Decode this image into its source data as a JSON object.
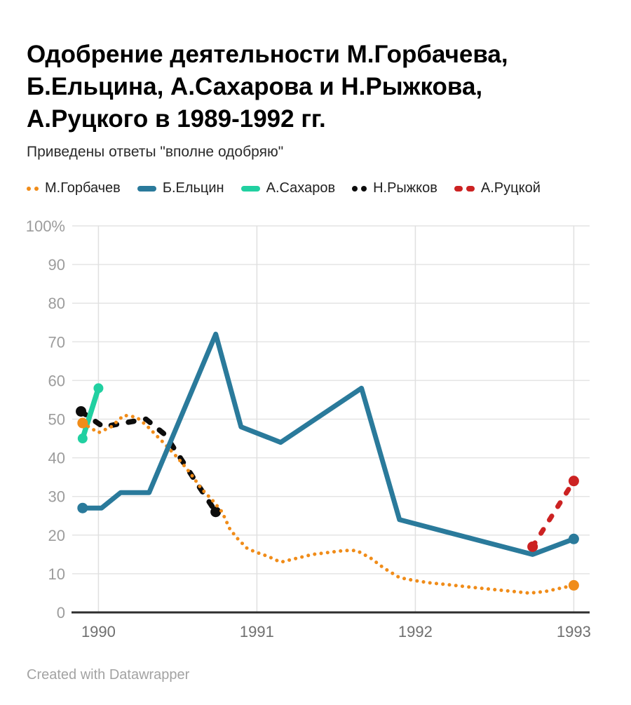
{
  "header": {
    "title_lines": [
      "Одобрение деятельности М.Горбачева,",
      "Б.Ельцина, А.Сахарова и Н.Рыжкова,",
      "А.Руцкого в 1989-1992 гг."
    ],
    "subtitle": "Приведены ответы \"вполне одобряю\""
  },
  "legend": {
    "items": [
      {
        "label": "М.Горбачев",
        "color": "#f08c19",
        "swatch": "dots-small"
      },
      {
        "label": "Б.Ельцин",
        "color": "#2a7a9b",
        "swatch": "bar"
      },
      {
        "label": "А.Сахаров",
        "color": "#21d0a1",
        "swatch": "bar"
      },
      {
        "label": "Н.Рыжков",
        "color": "#0c0c0c",
        "swatch": "dots"
      },
      {
        "label": "А.Руцкой",
        "color": "#cc2222",
        "swatch": "dashes"
      }
    ]
  },
  "chart_data": {
    "type": "line",
    "title": "Одобрение деятельности М.Горбачева, Б.Ельцина, А.Сахарова и Н.Рыжкова, А.Руцкого в 1989-1992 гг.",
    "subtitle": "Приведены ответы \"вполне одобряю\"",
    "xlabel": "",
    "ylabel": "%",
    "xlim": [
      1989.83,
      1993.1
    ],
    "ylim": [
      0,
      100
    ],
    "grid": true,
    "legend_position": "top",
    "x_ticks": [
      1990,
      1991,
      1992,
      1993
    ],
    "y_ticks": [
      {
        "v": 0,
        "label": "0"
      },
      {
        "v": 10,
        "label": "10"
      },
      {
        "v": 20,
        "label": "20"
      },
      {
        "v": 30,
        "label": "30"
      },
      {
        "v": 40,
        "label": "40"
      },
      {
        "v": 50,
        "label": "50"
      },
      {
        "v": 60,
        "label": "60"
      },
      {
        "v": 70,
        "label": "70"
      },
      {
        "v": 80,
        "label": "80"
      },
      {
        "v": 90,
        "label": "90"
      },
      {
        "v": 100,
        "label": "100%"
      }
    ],
    "series": [
      {
        "id": "ryzhkov",
        "name": "Н.Рыжков",
        "color": "#0c0c0c",
        "style": "dashed",
        "dash": "8 17",
        "width": 7.5,
        "marker_r": 7.5,
        "points": [
          [
            1989.89,
            52
          ],
          [
            1990.03,
            48
          ],
          [
            1990.16,
            49
          ],
          [
            1990.3,
            50
          ],
          [
            1990.42,
            46
          ],
          [
            1990.74,
            26
          ]
        ]
      },
      {
        "id": "sakharov",
        "name": "А.Сахаров",
        "color": "#21d0a1",
        "style": "solid",
        "width": 7.5,
        "marker_r": 7,
        "points": [
          [
            1989.9,
            45
          ],
          [
            1990.0,
            58
          ]
        ]
      },
      {
        "id": "gorbachev",
        "name": "М.Горбачев",
        "color": "#f08c19",
        "style": "dotted",
        "width": 5,
        "marker_r": 7.5,
        "points": [
          [
            1989.9,
            49
          ],
          [
            1990.0,
            46.5
          ],
          [
            1990.08,
            48
          ],
          [
            1990.16,
            51
          ],
          [
            1990.24,
            50.5
          ],
          [
            1990.3,
            48.5
          ],
          [
            1990.36,
            46
          ],
          [
            1990.42,
            43.5
          ],
          [
            1990.5,
            40
          ],
          [
            1990.58,
            36
          ],
          [
            1990.65,
            32
          ],
          [
            1990.72,
            29
          ],
          [
            1990.78,
            26
          ],
          [
            1990.83,
            21.5
          ],
          [
            1990.88,
            19
          ],
          [
            1990.94,
            16.5
          ],
          [
            1991.0,
            15.5
          ],
          [
            1991.07,
            14.5
          ],
          [
            1991.15,
            13
          ],
          [
            1991.25,
            14
          ],
          [
            1991.35,
            15
          ],
          [
            1991.45,
            15.5
          ],
          [
            1991.55,
            16
          ],
          [
            1991.63,
            16
          ],
          [
            1991.72,
            14
          ],
          [
            1991.8,
            11.5
          ],
          [
            1991.9,
            9
          ],
          [
            1992.0,
            8.2
          ],
          [
            1992.1,
            7.6
          ],
          [
            1992.2,
            7.2
          ],
          [
            1992.33,
            6.6
          ],
          [
            1992.45,
            6.1
          ],
          [
            1992.6,
            5.5
          ],
          [
            1992.72,
            5
          ],
          [
            1992.82,
            5.4
          ],
          [
            1992.92,
            6.3
          ],
          [
            1993.0,
            7
          ]
        ]
      },
      {
        "id": "yeltsin",
        "name": "Б.Ельцин",
        "color": "#2a7a9b",
        "style": "solid",
        "width": 7,
        "marker_r": 7.5,
        "points": [
          [
            1989.9,
            27
          ],
          [
            1990.02,
            27
          ],
          [
            1990.14,
            31
          ],
          [
            1990.32,
            31
          ],
          [
            1990.74,
            72
          ],
          [
            1990.9,
            48
          ],
          [
            1991.15,
            44
          ],
          [
            1991.66,
            58
          ],
          [
            1991.9,
            24
          ],
          [
            1992.74,
            15
          ],
          [
            1993.0,
            19
          ]
        ]
      },
      {
        "id": "rutskoy",
        "name": "А.Руцкой",
        "color": "#cc2222",
        "style": "dashed",
        "dash": "6.5 16",
        "width": 7,
        "marker_r": 7.5,
        "points": [
          [
            1992.74,
            17
          ],
          [
            1993.0,
            34
          ]
        ]
      }
    ]
  },
  "footer": {
    "credit": "Created with Datawrapper"
  }
}
